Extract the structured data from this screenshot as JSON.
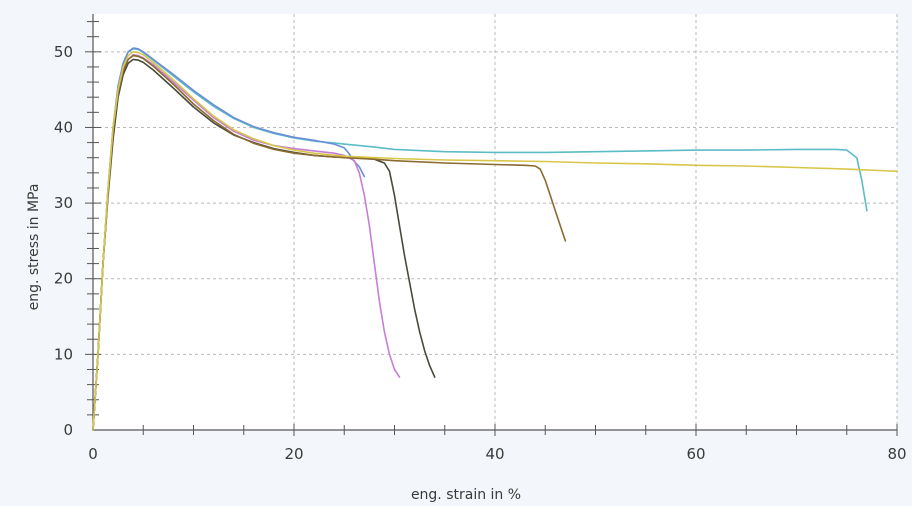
{
  "chart_data": {
    "type": "line",
    "title": "",
    "xlabel": "eng. strain in %",
    "ylabel": "eng. stress in MPa",
    "xlim": [
      0,
      80
    ],
    "ylim": [
      0,
      55
    ],
    "x_ticks": [
      "0",
      "20",
      "40",
      "60",
      "80"
    ],
    "y_ticks": [
      "0",
      "10",
      "20",
      "30",
      "40",
      "50"
    ],
    "grid": true,
    "legend": "none",
    "colors": {
      "background": "#f3f7fb",
      "plot_background": "#ffffff",
      "grid": "#b9b9b9",
      "axis": "#555555"
    },
    "series": [
      {
        "color": "#5bbcc6",
        "x": [
          0,
          0.5,
          1,
          1.5,
          2,
          2.5,
          3,
          3.5,
          4,
          4.5,
          5,
          6,
          8,
          10,
          12,
          14,
          16,
          18,
          20,
          22,
          25,
          28,
          30,
          35,
          40,
          45,
          50,
          55,
          60,
          65,
          70,
          74,
          75,
          76,
          76.5,
          77
        ],
        "y": [
          0,
          10,
          22,
          32,
          40,
          45.5,
          48.5,
          50,
          50.4,
          50.3,
          49.9,
          48.9,
          46.8,
          44.7,
          42.8,
          41.2,
          40,
          39.2,
          38.6,
          38.2,
          37.8,
          37.4,
          37.1,
          36.8,
          36.7,
          36.7,
          36.8,
          36.9,
          37,
          37,
          37.1,
          37.1,
          37,
          36,
          33,
          29
        ]
      },
      {
        "color": "#6b8fd6",
        "x": [
          0,
          0.5,
          1,
          1.5,
          2,
          2.5,
          3,
          3.5,
          4,
          4.5,
          5,
          6,
          8,
          10,
          12,
          14,
          16,
          18,
          20,
          22,
          24,
          25,
          25.5,
          26,
          26.5,
          27
        ],
        "y": [
          0,
          10,
          22,
          32,
          40,
          45.5,
          48.5,
          50,
          50.5,
          50.4,
          50,
          49,
          47,
          44.9,
          43,
          41.3,
          40.1,
          39.3,
          38.7,
          38.3,
          37.8,
          37.3,
          36.5,
          35.5,
          34.8,
          33.5
        ]
      },
      {
        "color": "#c77ed6",
        "x": [
          0,
          0.5,
          1,
          1.5,
          2,
          2.5,
          3,
          3.5,
          4,
          4.5,
          5,
          6,
          8,
          10,
          12,
          14,
          16,
          18,
          20,
          22,
          24,
          25,
          26,
          26.5,
          27,
          27.5,
          28,
          28.5,
          29,
          29.5,
          30,
          30.5
        ],
        "y": [
          0,
          10,
          22,
          31.5,
          39,
          44.5,
          47.5,
          49,
          49.6,
          49.5,
          49.2,
          48.3,
          46,
          43.6,
          41.3,
          39.5,
          38.3,
          37.6,
          37.2,
          36.9,
          36.6,
          36.3,
          35.6,
          34,
          31,
          27,
          22,
          17,
          13,
          10,
          8,
          7
        ]
      },
      {
        "color": "#4a4a3a",
        "x": [
          0,
          0.5,
          1,
          1.5,
          2,
          2.5,
          3,
          3.5,
          4,
          4.5,
          5,
          6,
          8,
          10,
          12,
          14,
          16,
          18,
          20,
          22,
          24,
          26,
          28,
          29,
          29.5,
          30,
          30.5,
          31,
          31.5,
          32,
          32.5,
          33,
          33.5,
          34
        ],
        "y": [
          0,
          10,
          22,
          31,
          38.5,
          44,
          47,
          48.5,
          49,
          48.9,
          48.6,
          47.6,
          45.2,
          42.7,
          40.6,
          39,
          38,
          37.2,
          36.7,
          36.3,
          36.1,
          36,
          35.8,
          35.3,
          34.2,
          31,
          27,
          23,
          19.5,
          16,
          13,
          10.5,
          8.5,
          7
        ]
      },
      {
        "color": "#8a6a2e",
        "x": [
          0,
          0.5,
          1,
          1.5,
          2,
          2.5,
          3,
          3.5,
          4,
          4.5,
          5,
          6,
          8,
          10,
          12,
          14,
          16,
          18,
          20,
          22,
          25,
          28,
          30,
          35,
          40,
          43,
          44,
          44.5,
          45,
          45.5,
          46,
          46.5,
          47
        ],
        "y": [
          0,
          10,
          22,
          31.5,
          39.5,
          44.5,
          47.5,
          49,
          49.5,
          49.4,
          49.1,
          48.1,
          45.7,
          43.1,
          40.9,
          39.1,
          37.9,
          37.1,
          36.6,
          36.3,
          36,
          35.8,
          35.6,
          35.3,
          35.1,
          35,
          34.9,
          34.5,
          33,
          31,
          29,
          27,
          25
        ]
      },
      {
        "color": "#d8c64a",
        "x": [
          0,
          0.5,
          1,
          1.5,
          2,
          2.5,
          3,
          3.5,
          4,
          4.5,
          5,
          6,
          8,
          10,
          12,
          14,
          16,
          18,
          20,
          22,
          25,
          30,
          35,
          40,
          45,
          50,
          55,
          60,
          65,
          70,
          75,
          80
        ],
        "y": [
          0,
          10,
          22,
          32,
          40,
          45,
          48,
          49.5,
          50,
          49.9,
          49.6,
          48.6,
          46.3,
          43.8,
          41.5,
          39.7,
          38.5,
          37.6,
          37,
          36.6,
          36.2,
          35.9,
          35.7,
          35.6,
          35.5,
          35.3,
          35.2,
          35,
          34.9,
          34.7,
          34.5,
          34.2
        ]
      }
    ]
  }
}
